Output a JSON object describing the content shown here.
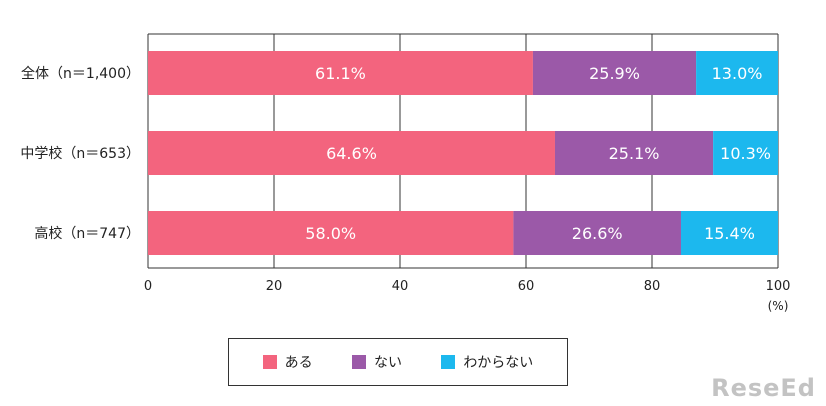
{
  "chart_data": {
    "type": "bar",
    "orientation": "horizontal",
    "stacked": true,
    "categories": [
      "全体（n＝1,400）",
      "中学校（n＝653）",
      "高校（n＝747）"
    ],
    "series": [
      {
        "name": "ある",
        "values": [
          61.1,
          64.6,
          58.0
        ],
        "labels": [
          "61.1%",
          "64.6%",
          "58.0%"
        ],
        "color": "#f3647e"
      },
      {
        "name": "ない",
        "values": [
          25.9,
          25.1,
          26.6
        ],
        "labels": [
          "25.9%",
          "25.1%",
          "26.6%"
        ],
        "color": "#9b59a8"
      },
      {
        "name": "わからない",
        "values": [
          13.0,
          10.3,
          15.4
        ],
        "labels": [
          "13.0%",
          "10.3%",
          "15.4%"
        ],
        "color": "#1cb8ee"
      }
    ],
    "xlim": [
      0,
      100
    ],
    "xticks": [
      "0",
      "20",
      "40",
      "60",
      "80",
      "100"
    ],
    "xunit": "(%)",
    "grid": true,
    "legend_position": "bottom"
  },
  "watermark": "ReseEd",
  "colors": {
    "grid": "#333333",
    "label_text": "#ffffff"
  }
}
